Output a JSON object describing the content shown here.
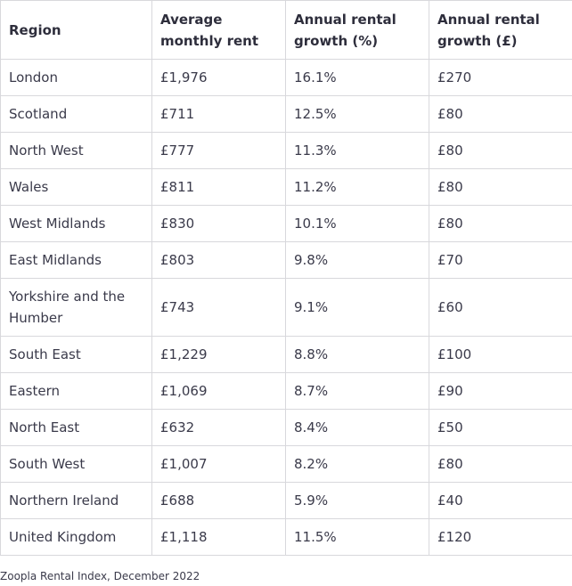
{
  "table": {
    "headers": [
      "Region",
      "Average monthly rent",
      "Annual rental growth (%)",
      "Annual rental growth (£)"
    ],
    "rows": [
      [
        "London",
        "£1,976",
        "16.1%",
        "£270"
      ],
      [
        "Scotland",
        "£711",
        "12.5%",
        "£80"
      ],
      [
        "North West",
        "£777",
        "11.3%",
        "£80"
      ],
      [
        "Wales",
        "£811",
        "11.2%",
        "£80"
      ],
      [
        "West Midlands",
        "£830",
        "10.1%",
        "£80"
      ],
      [
        "East Midlands",
        "£803",
        "9.8%",
        "£70"
      ],
      [
        "Yorkshire and the Humber",
        "£743",
        "9.1%",
        "£60"
      ],
      [
        "South East",
        "£1,229",
        "8.8%",
        "£100"
      ],
      [
        "Eastern",
        "£1,069",
        "8.7%",
        "£90"
      ],
      [
        "North East",
        "£632",
        "8.4%",
        "£50"
      ],
      [
        "South West",
        "£1,007",
        "8.2%",
        "£80"
      ],
      [
        "Northern Ireland",
        "£688",
        "5.9%",
        "£40"
      ],
      [
        "United Kingdom",
        "£1,118",
        "11.5%",
        "£120"
      ]
    ]
  },
  "caption": "Zoopla Rental Index, December 2022"
}
